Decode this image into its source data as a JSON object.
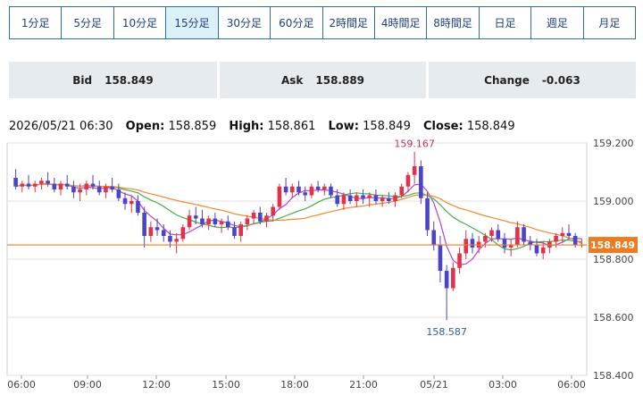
{
  "tabs": [
    "1分足",
    "5分足",
    "10分足",
    "15分足",
    "30分足",
    "60分足",
    "2時間足",
    "4時間足",
    "8時間足",
    "日足",
    "週足",
    "月足"
  ],
  "active_tab": "15分足",
  "quote": {
    "bid_label": "Bid",
    "bid": "158.849",
    "ask_label": "Ask",
    "ask": "158.889",
    "change_label": "Change",
    "change": "-0.063"
  },
  "ohlc": {
    "datetime": "2026/05/21 06:30",
    "open_label": "Open:",
    "open": "158.859",
    "high_label": "High:",
    "high": "158.861",
    "low_label": "Low:",
    "low": "158.849",
    "close_label": "Close:",
    "close": "158.849"
  },
  "colors": {
    "up": "#e0324a",
    "down": "#4c44c8",
    "ma_short": "#b844c8",
    "ma_mid": "#44b044",
    "ma_long": "#f08a30",
    "price_line": "#f07a20"
  },
  "chart_data": {
    "type": "candlestick",
    "ylim": [
      158.4,
      159.2
    ],
    "y_ticks": [
      "159.200",
      "159.000",
      "158.800",
      "158.600",
      "158.400"
    ],
    "x_ticks": [
      "06:00",
      "09:00",
      "12:00",
      "15:00",
      "18:00",
      "21:00",
      "05/21",
      "03:00",
      "06:00"
    ],
    "current_price": "158.849",
    "annotations": {
      "high_label": "159.167",
      "high_value": 159.167,
      "low_label": "158.587",
      "low_value": 158.587
    },
    "candles": [
      [
        159.08,
        159.11,
        159.04,
        159.05
      ],
      [
        159.05,
        159.07,
        159.03,
        159.06
      ],
      [
        159.06,
        159.09,
        159.04,
        159.05
      ],
      [
        159.05,
        159.07,
        159.03,
        159.06
      ],
      [
        159.06,
        159.08,
        159.04,
        159.07
      ],
      [
        159.07,
        159.1,
        159.05,
        159.06
      ],
      [
        159.06,
        159.08,
        159.03,
        159.04
      ],
      [
        159.04,
        159.07,
        159.02,
        159.06
      ],
      [
        159.06,
        159.09,
        159.04,
        159.05
      ],
      [
        159.05,
        159.07,
        159.01,
        159.03
      ],
      [
        159.03,
        159.06,
        159.0,
        159.04
      ],
      [
        159.04,
        159.07,
        159.02,
        159.06
      ],
      [
        159.06,
        159.09,
        159.04,
        159.05
      ],
      [
        159.05,
        159.07,
        159.02,
        159.03
      ],
      [
        159.03,
        159.06,
        159.01,
        159.05
      ],
      [
        159.05,
        159.08,
        159.03,
        159.04
      ],
      [
        159.04,
        159.06,
        159.0,
        159.01
      ],
      [
        159.01,
        159.03,
        158.97,
        158.99
      ],
      [
        158.99,
        159.02,
        158.96,
        159.0
      ],
      [
        159.0,
        159.02,
        158.95,
        158.96
      ],
      [
        158.96,
        158.98,
        158.84,
        158.88
      ],
      [
        158.88,
        158.93,
        158.86,
        158.91
      ],
      [
        158.91,
        158.94,
        158.88,
        158.9
      ],
      [
        158.9,
        158.92,
        158.86,
        158.88
      ],
      [
        158.88,
        158.9,
        158.84,
        158.86
      ],
      [
        158.86,
        158.89,
        158.82,
        158.87
      ],
      [
        158.87,
        158.92,
        158.86,
        158.91
      ],
      [
        158.91,
        158.97,
        158.9,
        158.95
      ],
      [
        158.95,
        158.98,
        158.92,
        158.94
      ],
      [
        158.94,
        158.97,
        158.91,
        158.92
      ],
      [
        158.92,
        158.95,
        158.9,
        158.94
      ],
      [
        158.94,
        158.96,
        158.91,
        158.92
      ],
      [
        158.92,
        158.94,
        158.89,
        158.93
      ],
      [
        158.93,
        158.95,
        158.9,
        158.91
      ],
      [
        158.91,
        158.93,
        158.87,
        158.88
      ],
      [
        158.88,
        158.93,
        158.86,
        158.92
      ],
      [
        158.92,
        158.95,
        158.9,
        158.94
      ],
      [
        158.94,
        158.97,
        158.92,
        158.96
      ],
      [
        158.96,
        158.98,
        158.92,
        158.93
      ],
      [
        158.93,
        158.96,
        158.91,
        158.95
      ],
      [
        158.95,
        158.99,
        158.93,
        158.98
      ],
      [
        158.98,
        159.06,
        158.97,
        159.05
      ],
      [
        159.05,
        159.08,
        159.02,
        159.03
      ],
      [
        159.03,
        159.06,
        159.01,
        159.05
      ],
      [
        159.05,
        159.07,
        159.02,
        159.03
      ],
      [
        159.03,
        159.05,
        159.0,
        159.02
      ],
      [
        159.02,
        159.06,
        159.01,
        159.05
      ],
      [
        159.05,
        159.07,
        159.03,
        159.04
      ],
      [
        159.04,
        159.06,
        159.02,
        159.05
      ],
      [
        159.05,
        159.06,
        159.01,
        159.02
      ],
      [
        159.02,
        159.04,
        158.98,
        158.99
      ],
      [
        158.99,
        159.03,
        158.97,
        159.02
      ],
      [
        159.02,
        159.04,
        158.99,
        159.0
      ],
      [
        159.0,
        159.03,
        158.98,
        159.02
      ],
      [
        159.02,
        159.04,
        158.99,
        159.01
      ],
      [
        159.01,
        159.03,
        158.98,
        159.02
      ],
      [
        159.02,
        159.04,
        158.99,
        159.0
      ],
      [
        159.0,
        159.02,
        158.98,
        159.01
      ],
      [
        159.01,
        159.03,
        158.99,
        159.0
      ],
      [
        159.0,
        159.03,
        158.98,
        159.02
      ],
      [
        159.02,
        159.06,
        159.01,
        159.05
      ],
      [
        159.05,
        159.1,
        159.03,
        159.09
      ],
      [
        159.09,
        159.17,
        159.06,
        159.12
      ],
      [
        159.12,
        159.14,
        158.99,
        159.01
      ],
      [
        159.01,
        159.03,
        158.88,
        158.9
      ],
      [
        158.9,
        158.93,
        158.83,
        158.85
      ],
      [
        158.85,
        158.88,
        158.72,
        158.76
      ],
      [
        158.76,
        158.78,
        158.59,
        158.7
      ],
      [
        158.7,
        158.79,
        158.69,
        158.77
      ],
      [
        158.77,
        158.84,
        158.75,
        158.82
      ],
      [
        158.82,
        158.9,
        158.8,
        158.87
      ],
      [
        158.87,
        158.89,
        158.82,
        158.84
      ],
      [
        158.84,
        158.88,
        158.82,
        158.86
      ],
      [
        158.86,
        158.89,
        158.84,
        158.88
      ],
      [
        158.88,
        158.91,
        158.86,
        158.9
      ],
      [
        158.9,
        158.92,
        158.86,
        158.87
      ],
      [
        158.87,
        158.89,
        158.82,
        158.84
      ],
      [
        158.84,
        158.87,
        158.81,
        158.85
      ],
      [
        158.85,
        158.93,
        158.84,
        158.91
      ],
      [
        158.91,
        158.92,
        158.85,
        158.86
      ],
      [
        158.86,
        158.88,
        158.83,
        158.85
      ],
      [
        158.85,
        158.87,
        158.81,
        158.82
      ],
      [
        158.82,
        158.86,
        158.8,
        158.84
      ],
      [
        158.84,
        158.87,
        158.82,
        158.86
      ],
      [
        158.86,
        158.89,
        158.84,
        158.88
      ],
      [
        158.88,
        158.91,
        158.86,
        158.89
      ],
      [
        158.89,
        158.92,
        158.87,
        158.88
      ],
      [
        158.88,
        158.89,
        158.84,
        158.85
      ],
      [
        158.85,
        158.87,
        158.84,
        158.85
      ]
    ]
  }
}
